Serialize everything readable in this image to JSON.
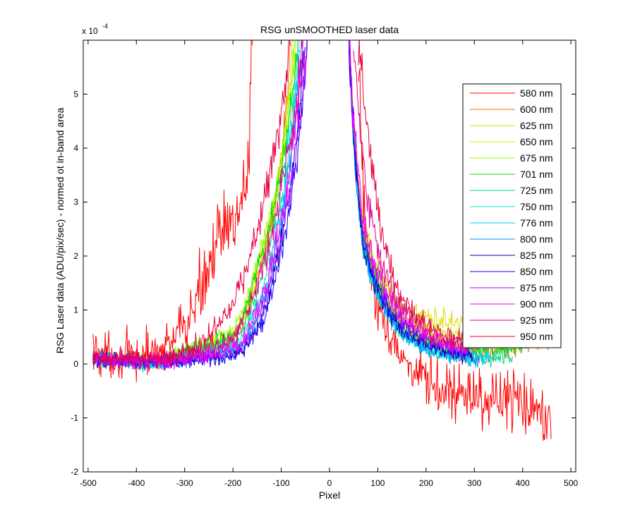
{
  "chart_data": {
    "type": "line",
    "title": "RSG unSMOOTHED laser data",
    "xlabel": "Pixel",
    "ylabel": "RSG Laser data (ADU/pix/sec) - normed ot in-band area",
    "y_exponent_base": "x 10",
    "y_exponent_power": "-4",
    "y_scale_factor": 0.0001,
    "xlim": [
      -510,
      510
    ],
    "ylim": [
      -2,
      6
    ],
    "xticks": [
      -500,
      -400,
      -300,
      -200,
      -100,
      0,
      100,
      200,
      300,
      400,
      500
    ],
    "yticks": [
      -2,
      -1,
      0,
      1,
      2,
      3,
      4,
      5
    ],
    "grid": false,
    "legend_position": "upper-right",
    "x_data_range": [
      -495,
      468
    ],
    "series": [
      {
        "name": "580 nm",
        "color": "#ff0000",
        "left_tail": [
          [
            -490,
            0.25
          ],
          [
            -400,
            0.1
          ],
          [
            -300,
            0.7
          ],
          [
            -250,
            2.0
          ],
          [
            -200,
            2.6
          ],
          [
            -170,
            3.5
          ],
          [
            -160,
            6.0
          ]
        ],
        "right_tail": [
          [
            60,
            6.0
          ],
          [
            80,
            2.0
          ],
          [
            120,
            0.5
          ],
          [
            200,
            -0.4
          ],
          [
            300,
            -0.6
          ],
          [
            400,
            -0.7
          ],
          [
            460,
            -0.8
          ]
        ]
      },
      {
        "name": "600 nm",
        "color": "#ff6400",
        "left_tail": [
          [
            -490,
            0.1
          ],
          [
            -350,
            0.05
          ],
          [
            -200,
            0.45
          ],
          [
            -150,
            1.6
          ],
          [
            -110,
            3.0
          ],
          [
            -80,
            6.0
          ]
        ],
        "right_tail": [
          [
            40,
            6.0
          ],
          [
            70,
            2.5
          ],
          [
            150,
            0.7
          ],
          [
            300,
            0.2
          ],
          [
            460,
            0.5
          ]
        ]
      },
      {
        "name": "625 nm",
        "color": "#dcdc00",
        "left_tail": [
          [
            -490,
            0.1
          ],
          [
            -350,
            0.05
          ],
          [
            -200,
            0.5
          ],
          [
            -150,
            1.8
          ],
          [
            -110,
            3.2
          ],
          [
            -75,
            6.0
          ]
        ],
        "right_tail": [
          [
            40,
            6.0
          ],
          [
            70,
            2.6
          ],
          [
            150,
            1.0
          ],
          [
            250,
            0.75
          ],
          [
            370,
            0.9
          ]
        ]
      },
      {
        "name": "650 nm",
        "color": "#c8f000",
        "left_tail": [
          [
            -490,
            0.1
          ],
          [
            -350,
            0.05
          ],
          [
            -200,
            0.5
          ],
          [
            -150,
            1.7
          ],
          [
            -110,
            3.1
          ],
          [
            -70,
            6.0
          ]
        ],
        "right_tail": [
          [
            40,
            6.0
          ],
          [
            70,
            2.5
          ],
          [
            150,
            0.9
          ],
          [
            250,
            0.5
          ],
          [
            400,
            0.75
          ]
        ]
      },
      {
        "name": "675 nm",
        "color": "#96ff00",
        "left_tail": [
          [
            -490,
            0.1
          ],
          [
            -350,
            0.05
          ],
          [
            -200,
            0.6
          ],
          [
            -150,
            1.9
          ],
          [
            -110,
            3.3
          ],
          [
            -70,
            6.0
          ]
        ],
        "right_tail": [
          [
            40,
            6.0
          ],
          [
            70,
            2.4
          ],
          [
            150,
            0.8
          ],
          [
            250,
            0.35
          ],
          [
            400,
            0.4
          ]
        ]
      },
      {
        "name": "701 nm",
        "color": "#00dc00",
        "left_tail": [
          [
            -490,
            0.1
          ],
          [
            -350,
            0.05
          ],
          [
            -200,
            0.55
          ],
          [
            -150,
            1.8
          ],
          [
            -110,
            3.1
          ],
          [
            -65,
            6.0
          ]
        ],
        "right_tail": [
          [
            40,
            6.0
          ],
          [
            70,
            2.3
          ],
          [
            150,
            0.7
          ],
          [
            250,
            0.25
          ],
          [
            400,
            0.3
          ]
        ]
      },
      {
        "name": "725 nm",
        "color": "#00dc78",
        "left_tail": [
          [
            -490,
            0.08
          ],
          [
            -350,
            0.03
          ],
          [
            -200,
            0.4
          ],
          [
            -150,
            1.4
          ],
          [
            -110,
            2.8
          ],
          [
            -65,
            6.0
          ]
        ],
        "right_tail": [
          [
            40,
            6.0
          ],
          [
            70,
            2.2
          ],
          [
            150,
            0.6
          ],
          [
            250,
            0.2
          ],
          [
            380,
            0.15
          ]
        ]
      },
      {
        "name": "750 nm",
        "color": "#00e6c8",
        "left_tail": [
          [
            -490,
            0.08
          ],
          [
            -350,
            0.02
          ],
          [
            -200,
            0.3
          ],
          [
            -150,
            1.1
          ],
          [
            -110,
            2.5
          ],
          [
            -62,
            6.0
          ]
        ],
        "right_tail": [
          [
            40,
            6.0
          ],
          [
            70,
            2.2
          ],
          [
            150,
            0.55
          ],
          [
            250,
            0.15
          ],
          [
            350,
            0.1
          ]
        ]
      },
      {
        "name": "776 nm",
        "color": "#00c8ff",
        "left_tail": [
          [
            -490,
            0.08
          ],
          [
            -350,
            0.02
          ],
          [
            -200,
            0.25
          ],
          [
            -150,
            0.95
          ],
          [
            -110,
            2.3
          ],
          [
            -60,
            6.0
          ]
        ],
        "right_tail": [
          [
            40,
            6.0
          ],
          [
            70,
            2.1
          ],
          [
            150,
            0.55
          ],
          [
            250,
            0.15
          ],
          [
            330,
            0.1
          ]
        ]
      },
      {
        "name": "800 nm",
        "color": "#0096ff",
        "left_tail": [
          [
            -490,
            0.08
          ],
          [
            -350,
            0.02
          ],
          [
            -200,
            0.2
          ],
          [
            -150,
            0.8
          ],
          [
            -110,
            2.1
          ],
          [
            -55,
            6.0
          ]
        ],
        "right_tail": [
          [
            40,
            6.0
          ],
          [
            70,
            2.1
          ],
          [
            150,
            0.6
          ],
          [
            250,
            0.15
          ],
          [
            310,
            0.1
          ]
        ]
      },
      {
        "name": "825 nm",
        "color": "#0000b4",
        "left_tail": [
          [
            -490,
            0.08
          ],
          [
            -350,
            0.02
          ],
          [
            -200,
            0.18
          ],
          [
            -150,
            0.7
          ],
          [
            -110,
            1.9
          ],
          [
            -50,
            6.0
          ]
        ],
        "right_tail": [
          [
            40,
            6.0
          ],
          [
            70,
            2.2
          ],
          [
            150,
            0.65
          ],
          [
            250,
            0.2
          ],
          [
            300,
            0.15
          ]
        ]
      },
      {
        "name": "850 nm",
        "color": "#1e00ff",
        "left_tail": [
          [
            -490,
            0.08
          ],
          [
            -350,
            0.02
          ],
          [
            -200,
            0.15
          ],
          [
            -150,
            0.6
          ],
          [
            -110,
            1.7
          ],
          [
            -45,
            6.0
          ]
        ],
        "right_tail": [
          [
            40,
            6.0
          ],
          [
            70,
            2.3
          ],
          [
            150,
            0.7
          ],
          [
            250,
            0.25
          ],
          [
            290,
            0.2
          ]
        ]
      },
      {
        "name": "875 nm",
        "color": "#b400ff",
        "left_tail": [
          [
            -490,
            0.08
          ],
          [
            -350,
            0.02
          ],
          [
            -200,
            0.2
          ],
          [
            -150,
            0.8
          ],
          [
            -110,
            2.0
          ],
          [
            -45,
            6.0
          ]
        ],
        "right_tail": [
          [
            40,
            6.0
          ],
          [
            70,
            2.4
          ],
          [
            150,
            0.8
          ],
          [
            250,
            0.3
          ],
          [
            290,
            0.25
          ]
        ]
      },
      {
        "name": "900 nm",
        "color": "#ff00ff",
        "left_tail": [
          [
            -490,
            0.1
          ],
          [
            -350,
            0.05
          ],
          [
            -200,
            0.3
          ],
          [
            -150,
            1.0
          ],
          [
            -110,
            2.3
          ],
          [
            -50,
            6.0
          ]
        ],
        "right_tail": [
          [
            40,
            6.0
          ],
          [
            70,
            2.6
          ],
          [
            150,
            0.9
          ],
          [
            250,
            0.35
          ],
          [
            290,
            0.3
          ]
        ]
      },
      {
        "name": "925 nm",
        "color": "#dc0096",
        "left_tail": [
          [
            -490,
            0.1
          ],
          [
            -350,
            0.08
          ],
          [
            -200,
            0.5
          ],
          [
            -150,
            1.5
          ],
          [
            -110,
            2.8
          ],
          [
            -55,
            6.0
          ]
        ],
        "right_tail": [
          [
            50,
            6.0
          ],
          [
            80,
            3.0
          ],
          [
            150,
            1.0
          ],
          [
            250,
            0.4
          ],
          [
            290,
            0.35
          ]
        ]
      },
      {
        "name": "950 nm",
        "color": "#e6003c",
        "left_tail": [
          [
            -490,
            0.15
          ],
          [
            -350,
            0.1
          ],
          [
            -250,
            0.5
          ],
          [
            -200,
            1.2
          ],
          [
            -150,
            2.5
          ],
          [
            -80,
            6.0
          ]
        ],
        "right_tail": [
          [
            60,
            6.0
          ],
          [
            90,
            3.5
          ],
          [
            150,
            1.2
          ],
          [
            250,
            0.5
          ],
          [
            290,
            0.45
          ]
        ]
      }
    ]
  }
}
